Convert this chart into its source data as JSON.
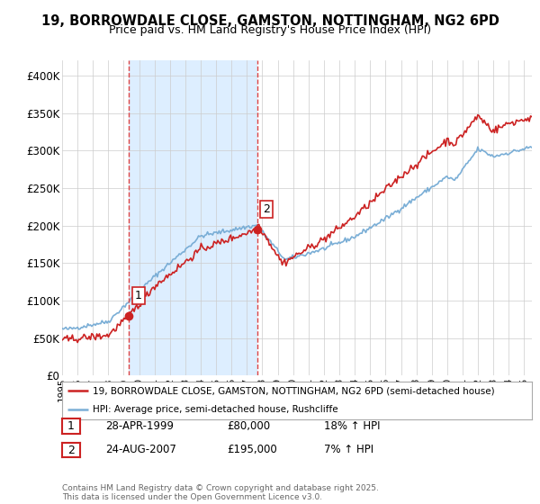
{
  "title": "19, BORROWDALE CLOSE, GAMSTON, NOTTINGHAM, NG2 6PD",
  "subtitle": "Price paid vs. HM Land Registry's House Price Index (HPI)",
  "legend_line1": "19, BORROWDALE CLOSE, GAMSTON, NOTTINGHAM, NG2 6PD (semi-detached house)",
  "legend_line2": "HPI: Average price, semi-detached house, Rushcliffe",
  "footer": "Contains HM Land Registry data © Crown copyright and database right 2025.\nThis data is licensed under the Open Government Licence v3.0.",
  "sale1_label": "1",
  "sale1_date": "28-APR-1999",
  "sale1_price": "£80,000",
  "sale1_hpi": "18% ↑ HPI",
  "sale2_label": "2",
  "sale2_date": "24-AUG-2007",
  "sale2_price": "£195,000",
  "sale2_hpi": "7% ↑ HPI",
  "ylim": [
    0,
    420000
  ],
  "yticks": [
    0,
    50000,
    100000,
    150000,
    200000,
    250000,
    300000,
    350000,
    400000
  ],
  "ytick_labels": [
    "£0",
    "£50K",
    "£100K",
    "£150K",
    "£200K",
    "£250K",
    "£300K",
    "£350K",
    "£400K"
  ],
  "red_color": "#cc2222",
  "blue_color": "#7aaed6",
  "sale_dot_color": "#cc2222",
  "vline_color": "#dd4444",
  "highlight_color": "#ddeeff",
  "background_color": "#ffffff",
  "grid_color": "#cccccc",
  "sale1_x": 1999.32,
  "sale2_x": 2007.65,
  "sale1_y": 80000,
  "sale2_y": 195000,
  "xlim_start": 1995.0,
  "xlim_end": 2025.5
}
